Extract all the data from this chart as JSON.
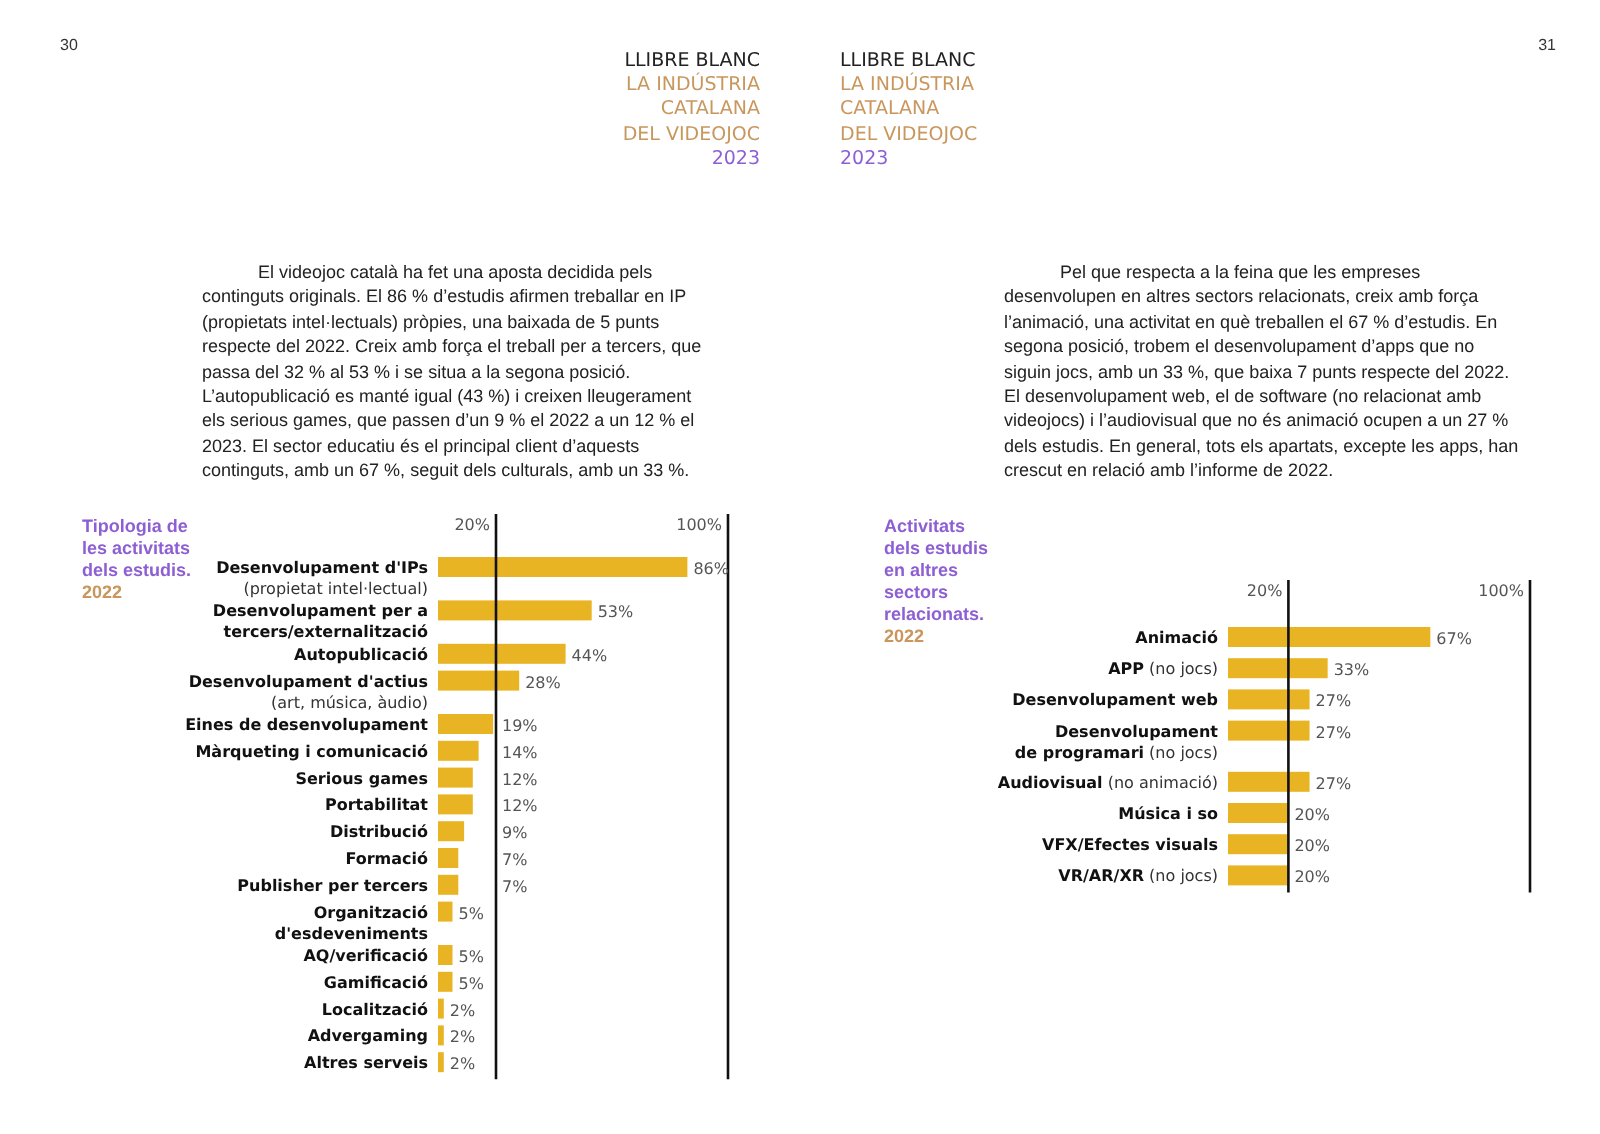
{
  "chart_data": [
    {
      "type": "bar",
      "orientation": "horizontal",
      "title": "Tipologia de\nles activitats\ndels estudis.",
      "subtitle": "2022",
      "categories": [
        "Desenvolupament d'IPs\n(propietat intel·lectual)",
        "Desenvolupament per a\ntercers/externalització",
        "Autopublicació",
        "Desenvolupament d'actius\n(art, música, àudio)",
        "Eines de desenvolupament",
        "Màrqueting i comunicació",
        "Serious games",
        "Portabilitat",
        "Distribució",
        "Formació",
        "Publisher per tercers",
        "Organització\nd'esdeveniments",
        "AQ/verificació",
        "Gamificació",
        "Localització",
        "Advergaming",
        "Altres serveis"
      ],
      "values": [
        86,
        53,
        44,
        28,
        19,
        14,
        12,
        12,
        9,
        7,
        7,
        5,
        5,
        5,
        2,
        2,
        2
      ],
      "value_labels": [
        "86%",
        "53%",
        "44%",
        "28%",
        "19%",
        "14%",
        "12%",
        "12%",
        "9%",
        "7%",
        "7%",
        "5%",
        "5%",
        "5%",
        "2%",
        "2%",
        "2%"
      ],
      "color": "#e9b424",
      "xlim": [
        0,
        100
      ],
      "tick_labels": "y",
      "ref_lines": [
        {
          "axis": "x",
          "value": 20,
          "label": "20%",
          "color": "#111111"
        },
        {
          "axis": "x",
          "value": 100,
          "label": "100%",
          "color": "#111111"
        }
      ],
      "annotations": [
        "30",
        "LLIBRE BLANC",
        "LA INDÚSTRIA\nCATALANA\nDEL VIDEOJOC",
        "2023",
        "El videojoc català ha fet una aposta decidida pels continguts originals. El 86 % d’estudis afirmen treballar en IP (propietats intel·lectuals) pròpies, una baixada de 5 punts respecte del 2022. Creix amb força el treball per a tercers, que passa del 32 % al 53 % i se situa a la segona posició. L’autopublicació es manté igual (43 %) i creixen lleugerament els serious games, que passen d’un 9 % el 2022 a un 12 % el 2023. El sector educatiu és el principal client d’aquests continguts, amb un 67 %, seguit dels culturals, amb un 33 %."
      ]
    },
    {
      "type": "bar",
      "orientation": "horizontal",
      "title": "Activitats\ndels estudis\nen altres\nsectors\nrelacionats.",
      "subtitle": "2022",
      "categories": [
        "Animació",
        "APP (no jocs)",
        "Desenvolupament web",
        "Desenvolupament\nde programari (no jocs)",
        "Audiovisual (no animació)",
        "Música i so",
        "VFX/Efectes visuals",
        "VR/AR/XR (no jocs)"
      ],
      "values": [
        67,
        33,
        27,
        27,
        27,
        20,
        20,
        20
      ],
      "value_labels": [
        "67%",
        "33%",
        "27%",
        "27%",
        "27%",
        "20%",
        "20%",
        "20%"
      ],
      "color": "#e9b424",
      "xlim": [
        0,
        100
      ],
      "tick_labels": "y",
      "ref_lines": [
        {
          "axis": "x",
          "value": 20,
          "label": "20%",
          "color": "#111111"
        },
        {
          "axis": "x",
          "value": 100,
          "label": "100%",
          "color": "#111111"
        }
      ],
      "annotations": [
        "31",
        "LLIBRE BLANC",
        "LA INDÚSTRIA\nCATALANA\nDEL VIDEOJOC",
        "2023",
        "Pel que respecta a la feina que les empreses desenvolupen en altres sectors relacionats, creix amb força l’animació, una activitat en què treballen el 67 % d’estudis. En segona posició, trobem el desenvolupament d’apps que no siguin jocs, amb un 33 %, que baixa 7 punts respecte del 2022. El desenvolupament web, el de software (no relacionat amb videojocs) i l’audiovisual que no és animació ocupen a un 27 % dels estudis. En general, tots els apartats, excepte les apps, han crescut en relació amb l’informe de 2022."
      ]
    }
  ]
}
